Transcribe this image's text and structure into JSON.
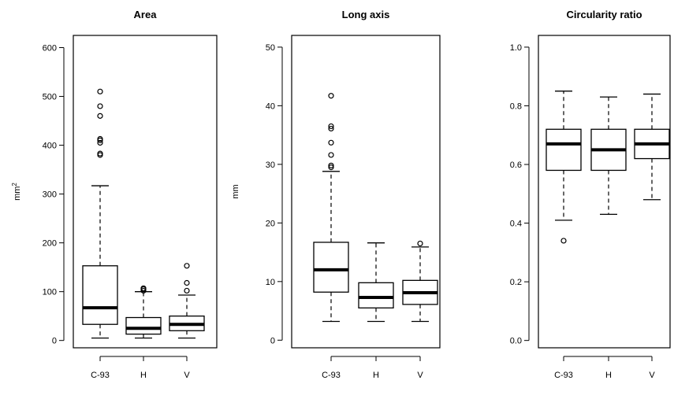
{
  "chart_data": [
    {
      "type": "box",
      "title": "Area",
      "ylabel": "mm",
      "ylabel_sup": "2",
      "categories": [
        "C-93",
        "H",
        "V"
      ],
      "yticks": [
        0,
        100,
        200,
        300,
        400,
        500,
        600
      ],
      "ylim": [
        -15,
        625
      ],
      "boxes": [
        {
          "category": "C-93",
          "whisker_low": 5,
          "q1": 33,
          "median": 67,
          "q3": 153,
          "whisker_high": 317,
          "outliers": [
            380,
            383,
            405,
            410,
            413,
            460,
            480,
            510
          ]
        },
        {
          "category": "H",
          "whisker_low": 5,
          "q1": 13,
          "median": 25,
          "q3": 47,
          "whisker_high": 100,
          "outliers": [
            102,
            105,
            107
          ]
        },
        {
          "category": "V",
          "whisker_low": 5,
          "q1": 20,
          "median": 33,
          "q3": 50,
          "whisker_high": 93,
          "outliers": [
            102,
            118,
            153
          ]
        }
      ]
    },
    {
      "type": "box",
      "title": "Long axis",
      "ylabel": "mm",
      "categories": [
        "C-93",
        "H",
        "V"
      ],
      "yticks": [
        0,
        10,
        20,
        30,
        40,
        50
      ],
      "ylim": [
        -1.3,
        52
      ],
      "boxes": [
        {
          "category": "C-93",
          "whisker_low": 3.2,
          "q1": 8.2,
          "median": 12,
          "q3": 16.7,
          "whisker_high": 28.8,
          "outliers": [
            29.5,
            29.8,
            31.6,
            33.7,
            36.1,
            36.5,
            41.7
          ]
        },
        {
          "category": "H",
          "whisker_low": 3.2,
          "q1": 5.5,
          "median": 7.3,
          "q3": 9.8,
          "whisker_high": 16.6,
          "outliers": []
        },
        {
          "category": "V",
          "whisker_low": 3.2,
          "q1": 6.1,
          "median": 8.1,
          "q3": 10.2,
          "whisker_high": 15.9,
          "outliers": [
            16.5
          ]
        }
      ]
    },
    {
      "type": "box",
      "title": "Circularity ratio",
      "ylabel": "",
      "categories": [
        "C-93",
        "H",
        "V"
      ],
      "yticks": [
        "0.0",
        "0.2",
        "0.4",
        "0.6",
        "0.8",
        "1.0"
      ],
      "ylim": [
        -0.025,
        1.04
      ],
      "boxes": [
        {
          "category": "C-93",
          "whisker_low": 0.41,
          "q1": 0.58,
          "median": 0.67,
          "q3": 0.72,
          "whisker_high": 0.85,
          "outliers": [
            0.34
          ]
        },
        {
          "category": "H",
          "whisker_low": 0.43,
          "q1": 0.58,
          "median": 0.65,
          "q3": 0.72,
          "whisker_high": 0.83,
          "outliers": []
        },
        {
          "category": "V",
          "whisker_low": 0.48,
          "q1": 0.62,
          "median": 0.67,
          "q3": 0.72,
          "whisker_high": 0.84,
          "outliers": []
        }
      ]
    }
  ]
}
